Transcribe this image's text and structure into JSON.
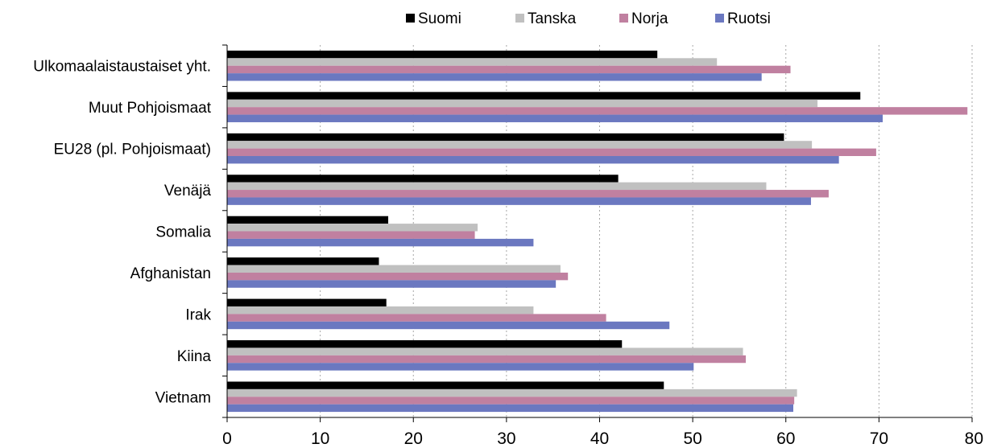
{
  "chart_data": {
    "type": "bar",
    "orientation": "horizontal",
    "categories": [
      "Ulkomaalaistaustaiset yht.",
      "Muut Pohjoismaat",
      "EU28 (pl. Pohjoismaat)",
      "Venäjä",
      "Somalia",
      "Afghanistan",
      "Irak",
      "Kiina",
      "Vietnam"
    ],
    "series": [
      {
        "name": "Suomi",
        "color": "#000000",
        "values": [
          46.2,
          68.0,
          59.8,
          42.0,
          17.3,
          16.3,
          17.1,
          42.4,
          46.9
        ]
      },
      {
        "name": "Tanska",
        "color": "#c0c0c0",
        "values": [
          52.6,
          63.4,
          62.8,
          57.9,
          26.9,
          35.8,
          32.9,
          55.4,
          61.2
        ]
      },
      {
        "name": "Norja",
        "color": "#c080a0",
        "values": [
          60.5,
          79.5,
          69.7,
          64.6,
          26.6,
          36.6,
          40.7,
          55.7,
          60.9
        ]
      },
      {
        "name": "Ruotsi",
        "color": "#6b78c0",
        "values": [
          57.4,
          70.4,
          65.7,
          62.7,
          32.9,
          35.3,
          47.5,
          50.1,
          60.8
        ]
      }
    ],
    "xlim": [
      0,
      80
    ],
    "xticks": [
      0,
      10,
      20,
      30,
      40,
      50,
      60,
      70,
      80
    ],
    "grid": "vertical dotted",
    "legend": "top"
  }
}
